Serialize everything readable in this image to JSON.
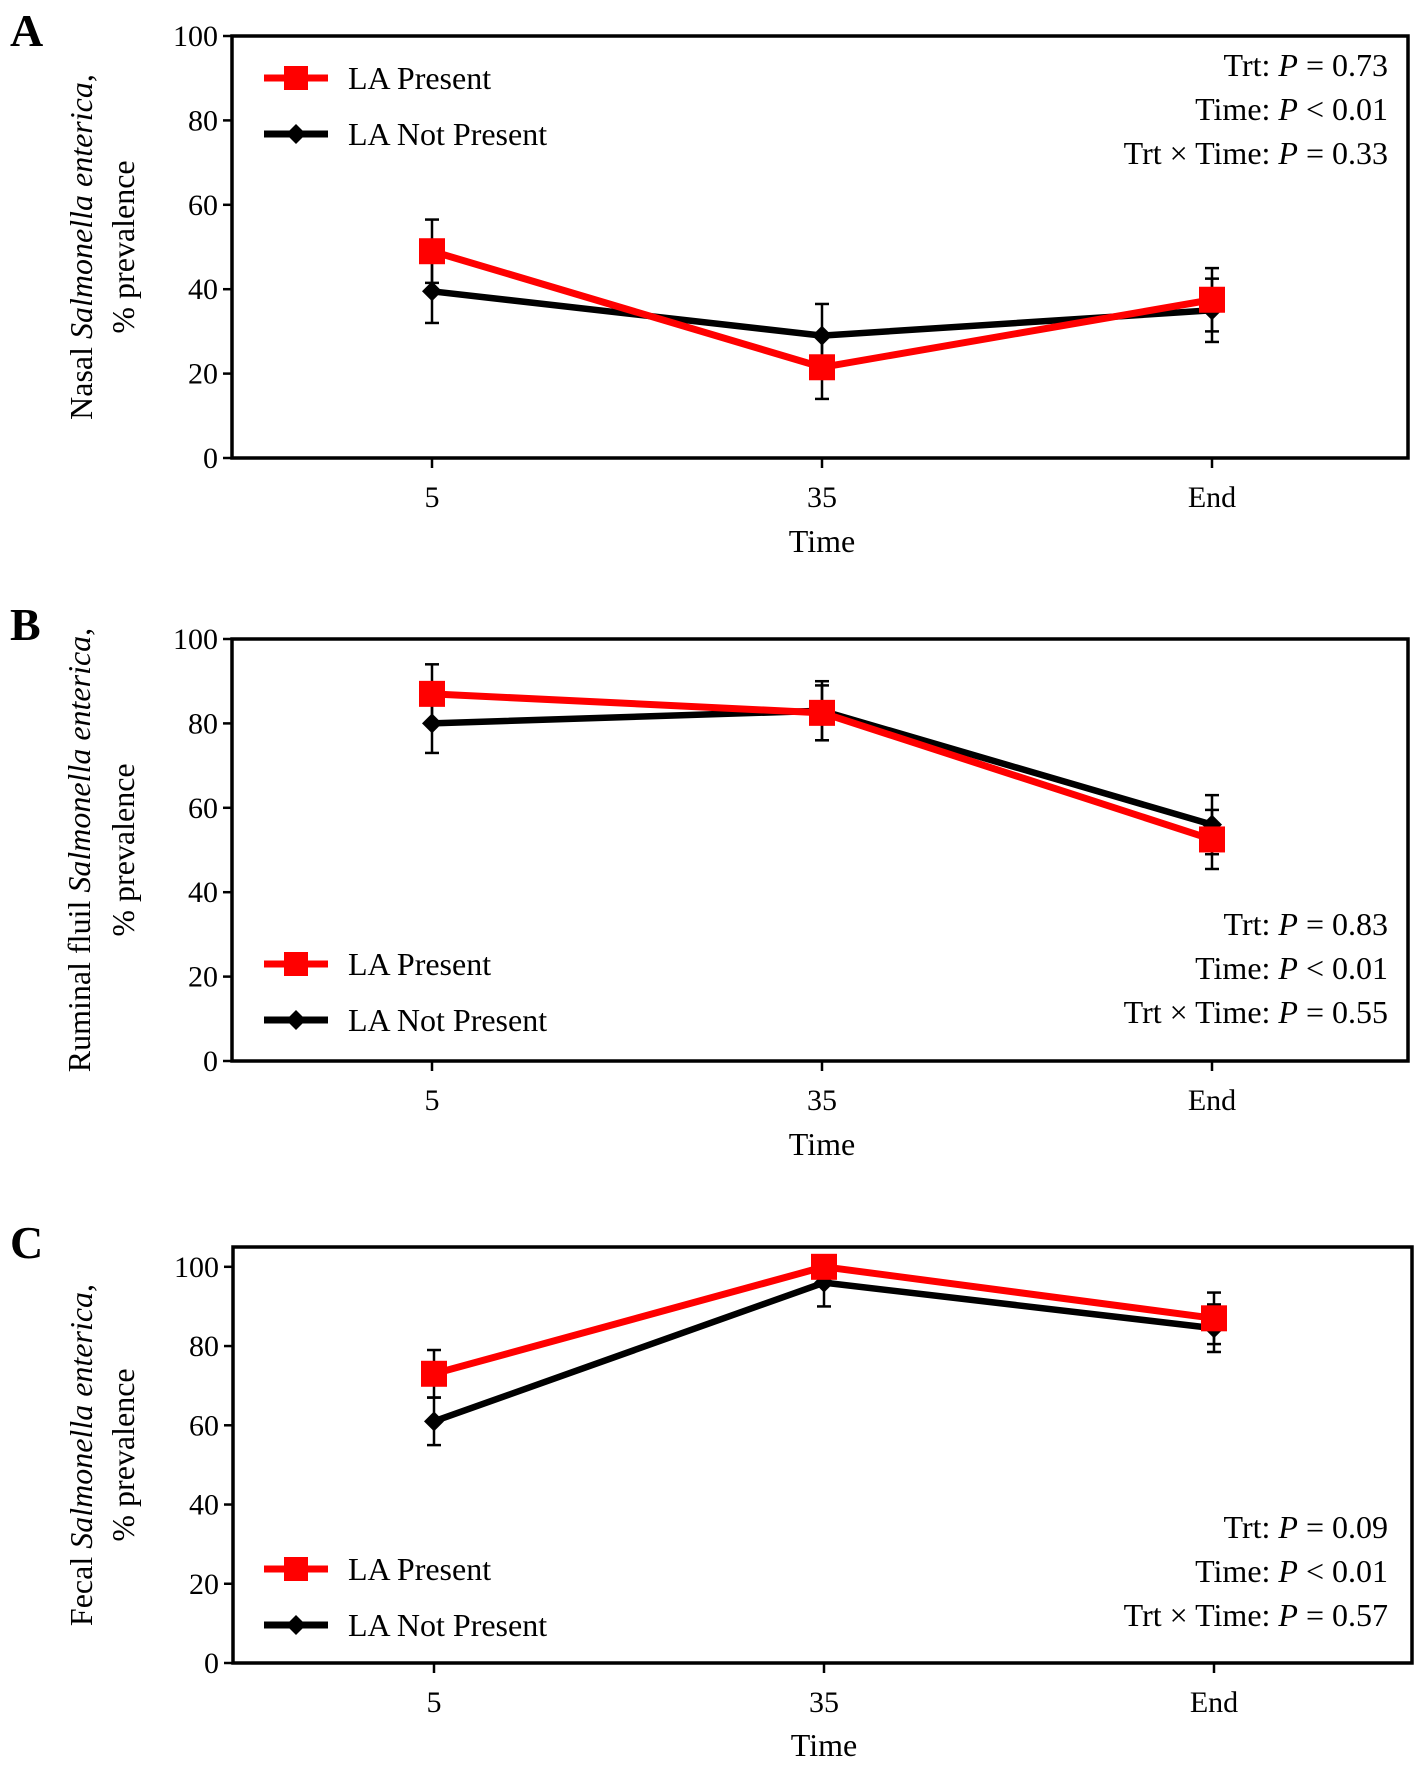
{
  "figure": {
    "colors": {
      "la_present": "#ff0000",
      "la_not_present": "#000000",
      "axis": "#000000"
    }
  },
  "chart_data": [
    {
      "type": "line",
      "panel": "A",
      "categories": [
        "5",
        "35",
        "End"
      ],
      "xlabel": "Time",
      "ylabel_parts": [
        "Nasal ",
        "Salmonella enterica",
        ","
      ],
      "ylabel_line2": "% prevalence",
      "ylim": [
        0,
        100
      ],
      "yticks": [
        "0",
        "20",
        "40",
        "60",
        "80",
        "100"
      ],
      "legend_position": "top-left",
      "series": [
        {
          "name": "LA Present",
          "marker": "square",
          "values": [
            49,
            21.5,
            37.5
          ],
          "errors": [
            7.5,
            7.5,
            7.5
          ]
        },
        {
          "name": "LA Not Present",
          "marker": "diamond",
          "values": [
            39.5,
            29,
            35
          ],
          "errors": [
            7.5,
            7.5,
            7.5
          ]
        }
      ],
      "stats": [
        {
          "label": "Trt: ",
          "p": "P",
          "value": " = 0.73"
        },
        {
          "label": "Time: ",
          "p": "P",
          "value": " < 0.01"
        },
        {
          "label": "Trt × Time:  ",
          "p": "P",
          "value": " = 0.33"
        }
      ]
    },
    {
      "type": "line",
      "panel": "B",
      "categories": [
        "5",
        "35",
        "End"
      ],
      "xlabel": "Time",
      "ylabel_parts": [
        "Ruminal fluil ",
        "Salmonella enterica",
        ","
      ],
      "ylabel_line2": "% prevalence",
      "ylim": [
        0,
        100
      ],
      "yticks": [
        "0",
        "20",
        "40",
        "60",
        "80",
        "100"
      ],
      "legend_position": "bottom-left",
      "series": [
        {
          "name": "LA Present",
          "marker": "square",
          "values": [
            87,
            82.5,
            52.5
          ],
          "errors": [
            7,
            6.5,
            7
          ]
        },
        {
          "name": "LA Not Present",
          "marker": "diamond",
          "values": [
            80,
            83,
            56
          ],
          "errors": [
            7,
            7,
            7
          ]
        }
      ],
      "stats": [
        {
          "label": "Trt: ",
          "p": "P",
          "value": " = 0.83"
        },
        {
          "label": "Time: ",
          "p": "P",
          "value": " < 0.01"
        },
        {
          "label": "Trt × Time:  ",
          "p": "P",
          "value": " = 0.55"
        }
      ]
    },
    {
      "type": "line",
      "panel": "C",
      "categories": [
        "5",
        "35",
        "End"
      ],
      "xlabel": "Time",
      "ylabel_parts": [
        "Fecal ",
        "Salmonella enterica",
        ","
      ],
      "ylabel_line2": "% prevalence",
      "ylim": [
        0,
        105
      ],
      "yticks": [
        "0",
        "20",
        "40",
        "60",
        "80",
        "100"
      ],
      "legend_position": "bottom-left",
      "series": [
        {
          "name": "LA Present",
          "marker": "square",
          "values": [
            73,
            100,
            87
          ],
          "errors": [
            6,
            0,
            6.5
          ]
        },
        {
          "name": "LA Not Present",
          "marker": "diamond",
          "values": [
            61,
            96,
            84.5
          ],
          "errors": [
            6,
            6,
            6
          ]
        }
      ],
      "stats": [
        {
          "label": "Trt: ",
          "p": "P",
          "value": " = 0.09"
        },
        {
          "label": "Time: ",
          "p": "P",
          "value": " < 0.01"
        },
        {
          "label": "Trt × Time:  ",
          "p": "P",
          "value": " = 0.57"
        }
      ]
    }
  ]
}
